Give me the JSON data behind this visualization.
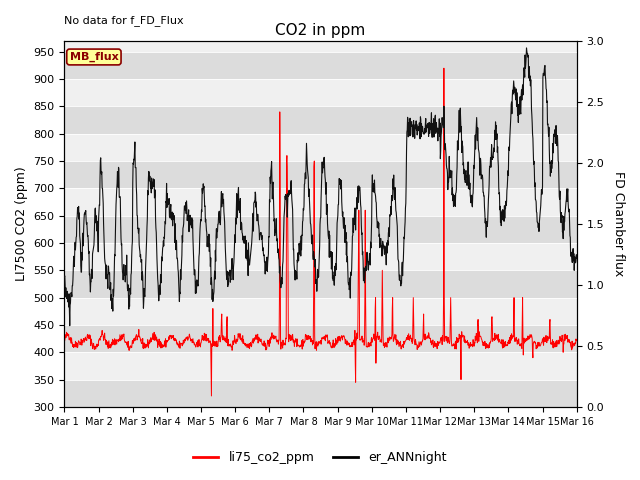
{
  "title": "CO2 in ppm",
  "top_left_text": "No data for f_FD_Flux",
  "ylabel_left": "LI7500 CO2 (ppm)",
  "ylabel_right": "FD Chamber flux",
  "ylim_left": [
    300,
    970
  ],
  "ylim_right": [
    0.0,
    3.0
  ],
  "yticks_left": [
    300,
    350,
    400,
    450,
    500,
    550,
    600,
    650,
    700,
    750,
    800,
    850,
    900,
    950
  ],
  "yticks_right": [
    0.0,
    0.5,
    1.0,
    1.5,
    2.0,
    2.5,
    3.0
  ],
  "xtick_labels": [
    "Mar 1",
    "Mar 2",
    "Mar 3",
    "Mar 4",
    "Mar 5",
    "Mar 6",
    "Mar 7",
    "Mar 8",
    "Mar 9",
    "Mar 10",
    "Mar 11",
    "Mar 12",
    "Mar 13",
    "Mar 14",
    "Mar 15",
    "Mar 16"
  ],
  "legend_entries": [
    "li75_co2_ppm",
    "er_ANNnight"
  ],
  "legend_colors": [
    "#ff0000",
    "#000000"
  ],
  "line_color_red": "#ff0000",
  "line_color_black": "#111111",
  "plot_bg_color": "#f0f0f0",
  "stripe_color": "#dcdcdc",
  "mb_flux_label": "MB_flux",
  "mb_flux_bg": "#ffff99",
  "mb_flux_border": "#8b0000",
  "n_days": 15,
  "n_per_day": 96
}
